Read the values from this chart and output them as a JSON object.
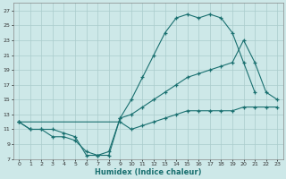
{
  "bg_color": "#cde8e8",
  "grid_color": "#aacccc",
  "line_color": "#1a7070",
  "xlabel": "Humidex (Indice chaleur)",
  "xlim": [
    -0.5,
    23.5
  ],
  "ylim": [
    7,
    28
  ],
  "yticks": [
    7,
    9,
    11,
    13,
    15,
    17,
    19,
    21,
    23,
    25,
    27
  ],
  "xticks": [
    0,
    1,
    2,
    3,
    4,
    5,
    6,
    7,
    8,
    9,
    10,
    11,
    12,
    13,
    14,
    15,
    16,
    17,
    18,
    19,
    20,
    21,
    22,
    23
  ],
  "line1_x": [
    0,
    1,
    2,
    3,
    4,
    5,
    6,
    7,
    8,
    9,
    10,
    11,
    12,
    13,
    14,
    15,
    16,
    17,
    18,
    19,
    20,
    21
  ],
  "line1_y": [
    12,
    11,
    11,
    11,
    10.5,
    10,
    7.5,
    7.5,
    8,
    12.5,
    15,
    18,
    21,
    24,
    26,
    26.5,
    26,
    26.5,
    26,
    24,
    20,
    16
  ],
  "line2_x": [
    0,
    1,
    2,
    3,
    4,
    5,
    6,
    7,
    8,
    9,
    10,
    11,
    12,
    13,
    14,
    15,
    16,
    17,
    18,
    19,
    20,
    21,
    22,
    23
  ],
  "line2_y": [
    12,
    11,
    11,
    10,
    10,
    9.5,
    8,
    7.5,
    7.5,
    12.5,
    13,
    14,
    15,
    16,
    17,
    18,
    18.5,
    19,
    19.5,
    20,
    23,
    20,
    16,
    15
  ],
  "line3_x": [
    0,
    9,
    10,
    11,
    12,
    13,
    14,
    15,
    16,
    17,
    18,
    19,
    20,
    21,
    22,
    23
  ],
  "line3_y": [
    12,
    12,
    11,
    11.5,
    12,
    12.5,
    13,
    13.5,
    13.5,
    13.5,
    13.5,
    13.5,
    14,
    14,
    14,
    14
  ]
}
